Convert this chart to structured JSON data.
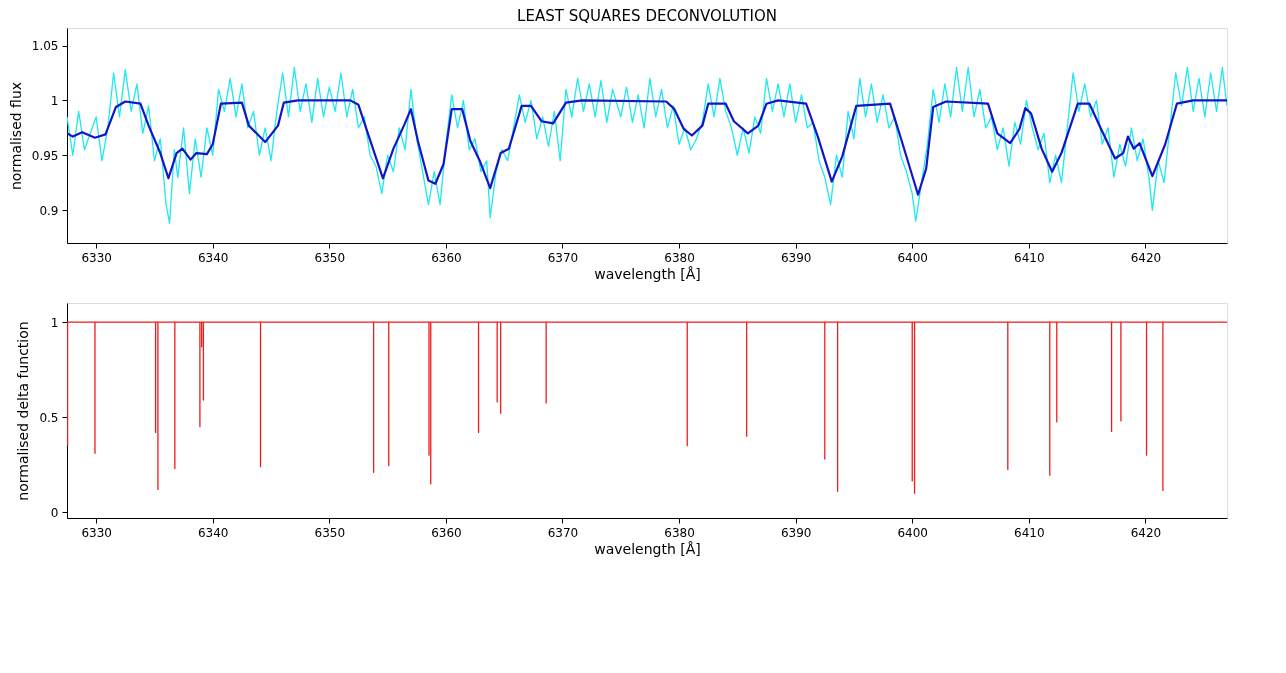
{
  "chart_data": [
    {
      "type": "line",
      "title": "LEAST SQUARES DECONVOLUTION",
      "xlabel": "wavelength [Å]",
      "ylabel": "normalised flux",
      "xlim": [
        6327.5,
        6427
      ],
      "ylim": [
        0.87,
        1.066
      ],
      "xticks": [
        6330,
        6340,
        6350,
        6360,
        6370,
        6380,
        6390,
        6400,
        6410,
        6420
      ],
      "yticks": [
        0.9,
        0.95,
        1,
        1.05
      ],
      "series": [
        {
          "color": "#1ee8f0",
          "x": [
            6327.5,
            6328,
            6328.5,
            6329,
            6330,
            6330.5,
            6331,
            6331.5,
            6332,
            6332.5,
            6333,
            6333.5,
            6334,
            6334.5,
            6335,
            6335.5,
            6336,
            6336.3,
            6336.7,
            6337,
            6337.5,
            6338,
            6338.5,
            6339,
            6339.5,
            6340,
            6340.5,
            6341,
            6341.5,
            6342,
            6342.5,
            6343,
            6343.5,
            6344,
            6344.5,
            6345,
            6345.5,
            6346,
            6346.5,
            6347,
            6347.5,
            6348,
            6348.5,
            6349,
            6349.5,
            6350,
            6350.5,
            6351,
            6351.5,
            6352,
            6352.5,
            6353,
            6353.5,
            6354,
            6354.5,
            6355,
            6355.5,
            6356,
            6356.5,
            6357,
            6357.5,
            6358,
            6358.5,
            6359,
            6359.5,
            6360,
            6360.5,
            6361,
            6361.5,
            6362,
            6362.5,
            6363,
            6363.5,
            6363.8,
            6364.3,
            6364.8,
            6365.3,
            6365.8,
            6366.3,
            6366.8,
            6367.3,
            6367.8,
            6368.3,
            6368.8,
            6369.3,
            6369.8,
            6370.3,
            6370.8,
            6371.3,
            6371.8,
            6372.3,
            6372.8,
            6373.3,
            6373.8,
            6374.3,
            6375,
            6375.5,
            6376,
            6376.5,
            6377,
            6377.5,
            6378,
            6378.5,
            6379,
            6379.5,
            6380,
            6380.5,
            6381,
            6381.5,
            6382,
            6382.5,
            6383,
            6383.5,
            6384,
            6384.5,
            6385,
            6385.5,
            6386,
            6386.5,
            6387,
            6387.5,
            6388,
            6388.5,
            6389,
            6389.5,
            6390,
            6390.5,
            6391,
            6391.5,
            6392,
            6392.5,
            6393,
            6393.5,
            6394,
            6394.5,
            6395,
            6395.5,
            6396,
            6396.5,
            6397,
            6397.5,
            6398,
            6398.5,
            6399,
            6399.5,
            6400,
            6400.3,
            6400.8,
            6401.3,
            6401.8,
            6402.3,
            6402.8,
            6403.3,
            6403.8,
            6404.3,
            6404.8,
            6405.3,
            6405.8,
            6406.3,
            6406.8,
            6407.3,
            6407.8,
            6408.3,
            6408.8,
            6409.3,
            6409.8,
            6410.3,
            6410.8,
            6411.3,
            6411.8,
            6412.3,
            6412.8,
            6413.3,
            6413.8,
            6414.3,
            6414.8,
            6415.3,
            6415.8,
            6416.3,
            6416.8,
            6417.3,
            6417.8,
            6418.3,
            6418.8,
            6419.3,
            6419.8,
            6420.3,
            6420.6,
            6421.1,
            6421.6,
            6422.1,
            6422.6,
            6423.1,
            6423.6,
            6424.1,
            6424.6,
            6425.1,
            6425.6,
            6426.1,
            6426.6,
            6427
          ],
          "values": [
            0.985,
            0.95,
            0.99,
            0.955,
            0.985,
            0.945,
            0.975,
            1.025,
            0.985,
            1.028,
            0.99,
            1.015,
            0.97,
            0.995,
            0.945,
            0.965,
            0.905,
            0.888,
            0.955,
            0.93,
            0.975,
            0.915,
            0.965,
            0.93,
            0.975,
            0.95,
            1.01,
            0.99,
            1.02,
            0.985,
            1.015,
            0.975,
            0.99,
            0.95,
            0.975,
            0.945,
            0.99,
            1.025,
            0.985,
            1.03,
            0.99,
            1.015,
            0.98,
            1.02,
            0.985,
            1.012,
            0.99,
            1.025,
            0.985,
            1.01,
            0.975,
            0.985,
            0.95,
            0.94,
            0.915,
            0.95,
            0.935,
            0.975,
            0.955,
            1.01,
            0.965,
            0.935,
            0.905,
            0.935,
            0.905,
            0.96,
            1.005,
            0.975,
            1.0,
            0.955,
            0.965,
            0.935,
            0.945,
            0.893,
            0.935,
            0.955,
            0.945,
            0.975,
            1.005,
            0.98,
            1.0,
            0.965,
            0.985,
            0.958,
            0.99,
            0.945,
            1.01,
            0.985,
            1.02,
            0.99,
            1.015,
            0.985,
            1.018,
            0.98,
            1.01,
            0.985,
            1.012,
            0.98,
            1.005,
            0.975,
            1.02,
            0.985,
            1.01,
            0.975,
            0.995,
            0.96,
            0.975,
            0.955,
            0.965,
            0.98,
            1.015,
            0.985,
            1.02,
            0.99,
            0.975,
            0.95,
            0.975,
            0.952,
            0.985,
            0.97,
            1.02,
            0.99,
            1.015,
            0.985,
            1.015,
            0.98,
            1.005,
            0.975,
            0.98,
            0.945,
            0.93,
            0.905,
            0.95,
            0.93,
            0.99,
            0.965,
            1.02,
            0.985,
            1.015,
            0.98,
            1.005,
            0.975,
            0.985,
            0.95,
            0.935,
            0.915,
            0.89,
            0.925,
            0.96,
            1.01,
            0.98,
            1.015,
            0.985,
            1.03,
            0.99,
            1.03,
            0.985,
            1.01,
            0.975,
            0.985,
            0.955,
            0.975,
            0.94,
            0.98,
            0.96,
            1.0,
            0.975,
            0.955,
            0.97,
            0.925,
            0.95,
            0.925,
            0.975,
            1.025,
            0.99,
            1.015,
            0.985,
            1.0,
            0.96,
            0.975,
            0.93,
            0.96,
            0.94,
            0.975,
            0.945,
            0.965,
            0.93,
            0.9,
            0.945,
            0.925,
            0.975,
            1.025,
            0.995,
            1.03,
            0.99,
            1.02,
            0.985,
            1.025,
            0.99,
            1.03,
            0.995
          ]
        },
        {
          "color": "#1414c8",
          "x": [
            6327.5,
            6328.0,
            6328.8,
            6329.9,
            6330.8,
            6331.7,
            6332.5,
            6333.8,
            6334.5,
            6335.5,
            6336.2,
            6336.9,
            6337.4,
            6338.1,
            6338.6,
            6339.5,
            6340.0,
            6340.7,
            6342.5,
            6343.1,
            6344.5,
            6345.6,
            6346.1,
            6347.3,
            6351.8,
            6352.5,
            6353.4,
            6354.6,
            6355.5,
            6356.4,
            6357.0,
            6357.6,
            6358.5,
            6359.1,
            6359.8,
            6360.5,
            6361.4,
            6362.1,
            6362.9,
            6363.8,
            6364.7,
            6365.4,
            6366.5,
            6367.3,
            6368.2,
            6369.2,
            6370.3,
            6371.7,
            6378.9,
            6379.6,
            6380.4,
            6381.1,
            6382.0,
            6382.5,
            6384.0,
            6384.7,
            6385.9,
            6386.8,
            6387.5,
            6388.5,
            6390.9,
            6391.9,
            6393.1,
            6394.0,
            6395.2,
            6398.1,
            6399.1,
            6400.5,
            6401.2,
            6401.8,
            6402.9,
            6406.5,
            6407.3,
            6408.4,
            6409.2,
            6409.7,
            6410.2,
            6411.1,
            6412.0,
            6412.8,
            6414.2,
            6415.2,
            6416.2,
            6417.4,
            6418.1,
            6418.5,
            6419.0,
            6419.5,
            6420.6,
            6421.7,
            6422.7,
            6424.1,
            6427.0
          ],
          "values": [
            0.97,
            0.967,
            0.971,
            0.966,
            0.969,
            0.994,
            0.999,
            0.997,
            0.977,
            0.952,
            0.929,
            0.952,
            0.956,
            0.946,
            0.952,
            0.951,
            0.96,
            0.997,
            0.998,
            0.977,
            0.962,
            0.977,
            0.998,
            1.0,
            1.0,
            0.996,
            0.967,
            0.929,
            0.956,
            0.977,
            0.992,
            0.963,
            0.927,
            0.924,
            0.942,
            0.992,
            0.992,
            0.963,
            0.945,
            0.92,
            0.952,
            0.956,
            0.995,
            0.995,
            0.981,
            0.979,
            0.998,
            1.0,
            0.999,
            0.992,
            0.974,
            0.968,
            0.977,
            0.997,
            0.997,
            0.981,
            0.97,
            0.977,
            0.997,
            1.0,
            0.997,
            0.967,
            0.926,
            0.949,
            0.995,
            0.997,
            0.963,
            0.914,
            0.938,
            0.994,
            0.999,
            0.997,
            0.97,
            0.961,
            0.974,
            0.993,
            0.988,
            0.956,
            0.935,
            0.952,
            0.997,
            0.997,
            0.974,
            0.947,
            0.952,
            0.967,
            0.956,
            0.961,
            0.931,
            0.96,
            0.997,
            1.0,
            1.0
          ]
        }
      ]
    },
    {
      "type": "line",
      "xlabel": "wavelength [Å]",
      "ylabel": "normalised delta function",
      "xlim": [
        6327.5,
        6427
      ],
      "ylim": [
        -0.03,
        1.1
      ],
      "xticks": [
        6330,
        6340,
        6350,
        6360,
        6370,
        6380,
        6390,
        6400,
        6410,
        6420
      ],
      "yticks": [
        0,
        0.5,
        1
      ],
      "series": [
        {
          "color": "#ee1c1c",
          "x": [
            6327.55,
            6327.55,
            6329.9,
            6329.9,
            6329.9,
            6335.1,
            6335.1,
            6335.1,
            6335.3,
            6335.3,
            6335.3,
            6336.75,
            6336.75,
            6336.75,
            6338.9,
            6338.9,
            6338.9,
            6339.05,
            6339.05,
            6339.05,
            6339.2,
            6339.2,
            6339.2,
            6344.1,
            6344.1,
            6344.1,
            6353.8,
            6353.8,
            6353.8,
            6355.1,
            6355.1,
            6355.1,
            6358.55,
            6358.55,
            6358.55,
            6358.7,
            6358.7,
            6358.7,
            6362.8,
            6362.8,
            6362.8,
            6364.4,
            6364.4,
            6364.4,
            6364.7,
            6364.7,
            6364.7,
            6368.6,
            6368.6,
            6368.6,
            6380.7,
            6380.7,
            6380.7,
            6385.8,
            6385.8,
            6385.8,
            6392.5,
            6392.5,
            6392.5,
            6393.6,
            6393.6,
            6393.6,
            6400.0,
            6400.0,
            6400.0,
            6400.2,
            6400.2,
            6400.2,
            6408.2,
            6408.2,
            6408.2,
            6411.8,
            6411.8,
            6411.8,
            6412.4,
            6412.4,
            6412.4,
            6417.1,
            6417.1,
            6417.1,
            6417.9,
            6417.9,
            6417.9,
            6420.1,
            6420.1,
            6420.1,
            6421.5,
            6421.5,
            6421.5,
            6427
          ],
          "values": [
            0.35,
            1,
            1,
            0.31,
            1,
            1,
            0.42,
            1,
            1,
            0.12,
            1,
            1,
            0.23,
            1,
            1,
            0.45,
            1,
            1,
            0.87,
            1,
            1,
            0.59,
            1,
            1,
            0.24,
            1,
            1,
            0.21,
            1,
            1,
            0.245,
            1,
            1,
            0.3,
            1,
            1,
            0.15,
            1,
            1,
            0.42,
            1,
            1,
            0.58,
            1,
            1,
            0.52,
            1,
            1,
            0.575,
            1,
            1,
            0.35,
            1,
            1,
            0.4,
            1,
            1,
            0.28,
            1,
            1,
            0.11,
            1,
            1,
            0.165,
            1,
            1,
            0.1,
            1,
            1,
            0.225,
            1,
            1,
            0.195,
            1,
            1,
            0.475,
            1,
            1,
            0.425,
            1,
            1,
            0.48,
            1,
            1,
            0.3,
            1,
            1,
            0.115,
            1,
            1
          ]
        }
      ]
    }
  ]
}
